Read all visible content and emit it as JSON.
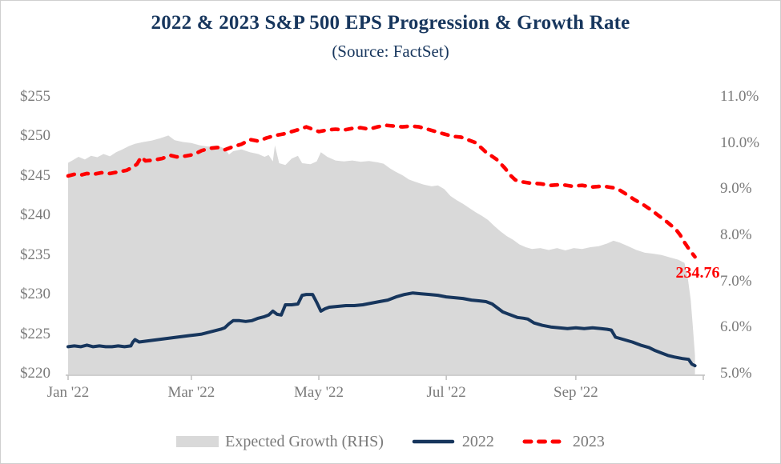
{
  "title": "2022 & 2023 S&P 500 EPS Progression & Growth Rate",
  "subtitle": "(Source: FactSet)",
  "annotation": {
    "text": "234.76",
    "value": 234.76,
    "color": "#fe0000"
  },
  "colors": {
    "title": "#17365d",
    "series_2022": "#17365d",
    "series_2023": "#fe0000",
    "growth_area": "#d9d9d9",
    "axis_text": "#7a7a7a",
    "axis_line": "#bfbfbf"
  },
  "chart_data": {
    "type": "combo",
    "title": "2022 & 2023 S&P 500 EPS Progression & Growth Rate",
    "subtitle": "(Source: FactSet)",
    "grid": false,
    "legend_position": "bottom",
    "x_axis": {
      "unit": "days from Jan 1 2022",
      "min": 0,
      "max": 304,
      "ticks": [
        {
          "day": 0,
          "label": "Jan '22"
        },
        {
          "day": 59,
          "label": "Mar '22"
        },
        {
          "day": 120,
          "label": "May '22"
        },
        {
          "day": 181,
          "label": "Jul '22"
        },
        {
          "day": 243,
          "label": "Sep '22"
        },
        {
          "day": 304,
          "label": ""
        }
      ]
    },
    "y_left": {
      "min": 220,
      "max": 255,
      "labels": [
        "$255",
        "$250",
        "$245",
        "$240",
        "$235",
        "$230",
        "$225",
        "$220"
      ],
      "values": [
        255,
        250,
        245,
        240,
        235,
        230,
        225,
        220
      ]
    },
    "y_right": {
      "min": 5,
      "max": 11,
      "labels": [
        "11.0%",
        "10.0%",
        "9.0%",
        "8.0%",
        "7.0%",
        "6.0%",
        "5.0%"
      ],
      "values": [
        11,
        10,
        9,
        8,
        7,
        6,
        5
      ]
    },
    "legend": [
      {
        "label": "Expected Growth (RHS)",
        "swatch": "area",
        "color": "#d9d9d9"
      },
      {
        "label": "2022",
        "swatch": "line",
        "color": "#17365d"
      },
      {
        "label": "2023",
        "swatch": "dashed",
        "color": "#fe0000"
      }
    ],
    "series": [
      {
        "name": "Expected Growth (RHS)",
        "type": "area",
        "axis": "y_right",
        "color": "#d9d9d9",
        "points": [
          [
            0,
            9.57
          ],
          [
            2,
            9.62
          ],
          [
            5,
            9.7
          ],
          [
            8,
            9.64
          ],
          [
            11,
            9.72
          ],
          [
            14,
            9.69
          ],
          [
            17,
            9.76
          ],
          [
            20,
            9.71
          ],
          [
            23,
            9.8
          ],
          [
            26,
            9.86
          ],
          [
            29,
            9.93
          ],
          [
            32,
            9.98
          ],
          [
            36,
            10.02
          ],
          [
            40,
            10.05
          ],
          [
            44,
            10.1
          ],
          [
            48,
            10.16
          ],
          [
            51,
            10.06
          ],
          [
            55,
            10.02
          ],
          [
            59,
            10.0
          ],
          [
            63,
            9.95
          ],
          [
            67,
            9.92
          ],
          [
            71,
            9.95
          ],
          [
            75,
            9.88
          ],
          [
            77,
            9.75
          ],
          [
            79,
            9.82
          ],
          [
            83,
            9.86
          ],
          [
            87,
            9.8
          ],
          [
            91,
            9.76
          ],
          [
            94,
            9.7
          ],
          [
            96,
            9.74
          ],
          [
            98,
            9.6
          ],
          [
            99,
            9.95
          ],
          [
            101,
            9.56
          ],
          [
            104,
            9.52
          ],
          [
            107,
            9.66
          ],
          [
            110,
            9.72
          ],
          [
            112,
            9.56
          ],
          [
            116,
            9.54
          ],
          [
            119,
            9.6
          ],
          [
            121,
            9.8
          ],
          [
            124,
            9.7
          ],
          [
            128,
            9.62
          ],
          [
            132,
            9.6
          ],
          [
            136,
            9.62
          ],
          [
            140,
            9.59
          ],
          [
            144,
            9.61
          ],
          [
            148,
            9.58
          ],
          [
            151,
            9.55
          ],
          [
            154,
            9.45
          ],
          [
            157,
            9.37
          ],
          [
            160,
            9.3
          ],
          [
            163,
            9.21
          ],
          [
            166,
            9.16
          ],
          [
            170,
            9.1
          ],
          [
            174,
            9.06
          ],
          [
            177,
            9.08
          ],
          [
            180,
            9.0
          ],
          [
            183,
            8.85
          ],
          [
            186,
            8.76
          ],
          [
            189,
            8.68
          ],
          [
            192,
            8.59
          ],
          [
            195,
            8.5
          ],
          [
            198,
            8.42
          ],
          [
            201,
            8.33
          ],
          [
            204,
            8.2
          ],
          [
            207,
            8.08
          ],
          [
            210,
            7.98
          ],
          [
            213,
            7.9
          ],
          [
            216,
            7.8
          ],
          [
            219,
            7.74
          ],
          [
            222,
            7.7
          ],
          [
            226,
            7.72
          ],
          [
            230,
            7.68
          ],
          [
            234,
            7.72
          ],
          [
            238,
            7.67
          ],
          [
            242,
            7.72
          ],
          [
            246,
            7.7
          ],
          [
            250,
            7.74
          ],
          [
            254,
            7.76
          ],
          [
            258,
            7.82
          ],
          [
            261,
            7.88
          ],
          [
            264,
            7.84
          ],
          [
            268,
            7.76
          ],
          [
            272,
            7.68
          ],
          [
            276,
            7.62
          ],
          [
            280,
            7.6
          ],
          [
            284,
            7.57
          ],
          [
            288,
            7.52
          ],
          [
            292,
            7.47
          ],
          [
            295,
            7.4
          ],
          [
            296.5,
            7.1
          ],
          [
            298,
            6.6
          ],
          [
            299,
            6.0
          ],
          [
            300,
            5.4
          ]
        ]
      },
      {
        "name": "2022",
        "type": "line",
        "axis": "y_left",
        "color": "#17365d",
        "points": [
          [
            0,
            223.4
          ],
          [
            3,
            223.5
          ],
          [
            6,
            223.4
          ],
          [
            9,
            223.6
          ],
          [
            12,
            223.4
          ],
          [
            15,
            223.5
          ],
          [
            18,
            223.4
          ],
          [
            21,
            223.4
          ],
          [
            24,
            223.5
          ],
          [
            27,
            223.4
          ],
          [
            30,
            223.5
          ],
          [
            31,
            224.0
          ],
          [
            32,
            224.3
          ],
          [
            34,
            224.0
          ],
          [
            37,
            224.1
          ],
          [
            40,
            224.2
          ],
          [
            43,
            224.3
          ],
          [
            46,
            224.4
          ],
          [
            49,
            224.5
          ],
          [
            52,
            224.6
          ],
          [
            55,
            224.7
          ],
          [
            58,
            224.8
          ],
          [
            61,
            224.9
          ],
          [
            64,
            225.0
          ],
          [
            67,
            225.2
          ],
          [
            70,
            225.4
          ],
          [
            73,
            225.6
          ],
          [
            75,
            225.8
          ],
          [
            77,
            226.3
          ],
          [
            79,
            226.7
          ],
          [
            82,
            226.7
          ],
          [
            85,
            226.6
          ],
          [
            88,
            226.7
          ],
          [
            91,
            227.0
          ],
          [
            94,
            227.2
          ],
          [
            96,
            227.4
          ],
          [
            98,
            227.9
          ],
          [
            100,
            227.5
          ],
          [
            102,
            227.4
          ],
          [
            104,
            228.7
          ],
          [
            107,
            228.7
          ],
          [
            110,
            228.8
          ],
          [
            112,
            229.9
          ],
          [
            114,
            230.0
          ],
          [
            117,
            230.0
          ],
          [
            119,
            229.0
          ],
          [
            121,
            227.9
          ],
          [
            123,
            228.2
          ],
          [
            125,
            228.4
          ],
          [
            129,
            228.5
          ],
          [
            133,
            228.6
          ],
          [
            137,
            228.6
          ],
          [
            141,
            228.7
          ],
          [
            145,
            228.9
          ],
          [
            149,
            229.1
          ],
          [
            153,
            229.3
          ],
          [
            157,
            229.7
          ],
          [
            161,
            230.0
          ],
          [
            165,
            230.2
          ],
          [
            169,
            230.1
          ],
          [
            173,
            230.0
          ],
          [
            177,
            229.9
          ],
          [
            181,
            229.7
          ],
          [
            185,
            229.6
          ],
          [
            189,
            229.5
          ],
          [
            193,
            229.3
          ],
          [
            197,
            229.2
          ],
          [
            200,
            229.1
          ],
          [
            203,
            228.8
          ],
          [
            205,
            228.4
          ],
          [
            208,
            227.8
          ],
          [
            211,
            227.5
          ],
          [
            215,
            227.1
          ],
          [
            218,
            227.0
          ],
          [
            220,
            226.9
          ],
          [
            223,
            226.4
          ],
          [
            227,
            226.1
          ],
          [
            231,
            225.9
          ],
          [
            235,
            225.8
          ],
          [
            239,
            225.7
          ],
          [
            243,
            225.8
          ],
          [
            247,
            225.7
          ],
          [
            251,
            225.8
          ],
          [
            255,
            225.7
          ],
          [
            258,
            225.6
          ],
          [
            260,
            225.5
          ],
          [
            262,
            224.6
          ],
          [
            266,
            224.3
          ],
          [
            270,
            224.0
          ],
          [
            274,
            223.6
          ],
          [
            278,
            223.3
          ],
          [
            281,
            222.9
          ],
          [
            284,
            222.6
          ],
          [
            287,
            222.3
          ],
          [
            290,
            222.1
          ],
          [
            294,
            221.9
          ],
          [
            297,
            221.8
          ],
          [
            298.5,
            221.2
          ],
          [
            300,
            221.0
          ]
        ]
      },
      {
        "name": "2023",
        "type": "dashed",
        "axis": "y_left",
        "color": "#fe0000",
        "points": [
          [
            0,
            245.0
          ],
          [
            3,
            245.2
          ],
          [
            6,
            245.1
          ],
          [
            9,
            245.3
          ],
          [
            12,
            245.2
          ],
          [
            16,
            245.4
          ],
          [
            20,
            245.3
          ],
          [
            24,
            245.5
          ],
          [
            28,
            245.7
          ],
          [
            31,
            246.1
          ],
          [
            33,
            246.5
          ],
          [
            35,
            247.4
          ],
          [
            37,
            246.9
          ],
          [
            41,
            247.0
          ],
          [
            45,
            247.2
          ],
          [
            49,
            247.6
          ],
          [
            52,
            247.4
          ],
          [
            56,
            247.5
          ],
          [
            60,
            247.7
          ],
          [
            64,
            248.2
          ],
          [
            68,
            248.5
          ],
          [
            72,
            248.6
          ],
          [
            75,
            248.3
          ],
          [
            79,
            248.7
          ],
          [
            83,
            249.0
          ],
          [
            87,
            249.6
          ],
          [
            91,
            249.4
          ],
          [
            95,
            249.8
          ],
          [
            99,
            250.1
          ],
          [
            103,
            250.3
          ],
          [
            107,
            250.6
          ],
          [
            111,
            250.9
          ],
          [
            114,
            251.2
          ],
          [
            117,
            250.9
          ],
          [
            120,
            250.6
          ],
          [
            124,
            250.8
          ],
          [
            128,
            250.9
          ],
          [
            132,
            250.8
          ],
          [
            136,
            251.0
          ],
          [
            140,
            251.1
          ],
          [
            144,
            250.9
          ],
          [
            148,
            251.2
          ],
          [
            152,
            251.4
          ],
          [
            156,
            251.3
          ],
          [
            160,
            251.2
          ],
          [
            164,
            251.3
          ],
          [
            168,
            251.2
          ],
          [
            172,
            250.9
          ],
          [
            176,
            250.6
          ],
          [
            180,
            250.3
          ],
          [
            184,
            250.0
          ],
          [
            188,
            249.9
          ],
          [
            191,
            249.6
          ],
          [
            195,
            249.2
          ],
          [
            200,
            248.0
          ],
          [
            205,
            247.1
          ],
          [
            209,
            246.0
          ],
          [
            212,
            245.0
          ],
          [
            214,
            244.5
          ],
          [
            216,
            244.3
          ],
          [
            221,
            244.1
          ],
          [
            226,
            244.0
          ],
          [
            231,
            243.8
          ],
          [
            236,
            243.9
          ],
          [
            241,
            243.7
          ],
          [
            246,
            243.8
          ],
          [
            251,
            243.6
          ],
          [
            256,
            243.7
          ],
          [
            261,
            243.5
          ],
          [
            264,
            243.2
          ],
          [
            267,
            242.7
          ],
          [
            271,
            242.0
          ],
          [
            275,
            241.4
          ],
          [
            279,
            240.7
          ],
          [
            283,
            239.9
          ],
          [
            287,
            239.1
          ],
          [
            291,
            238.2
          ],
          [
            293,
            237.5
          ],
          [
            295,
            236.6
          ],
          [
            297,
            235.8
          ],
          [
            299,
            235.1
          ],
          [
            300,
            234.76
          ]
        ]
      }
    ]
  }
}
